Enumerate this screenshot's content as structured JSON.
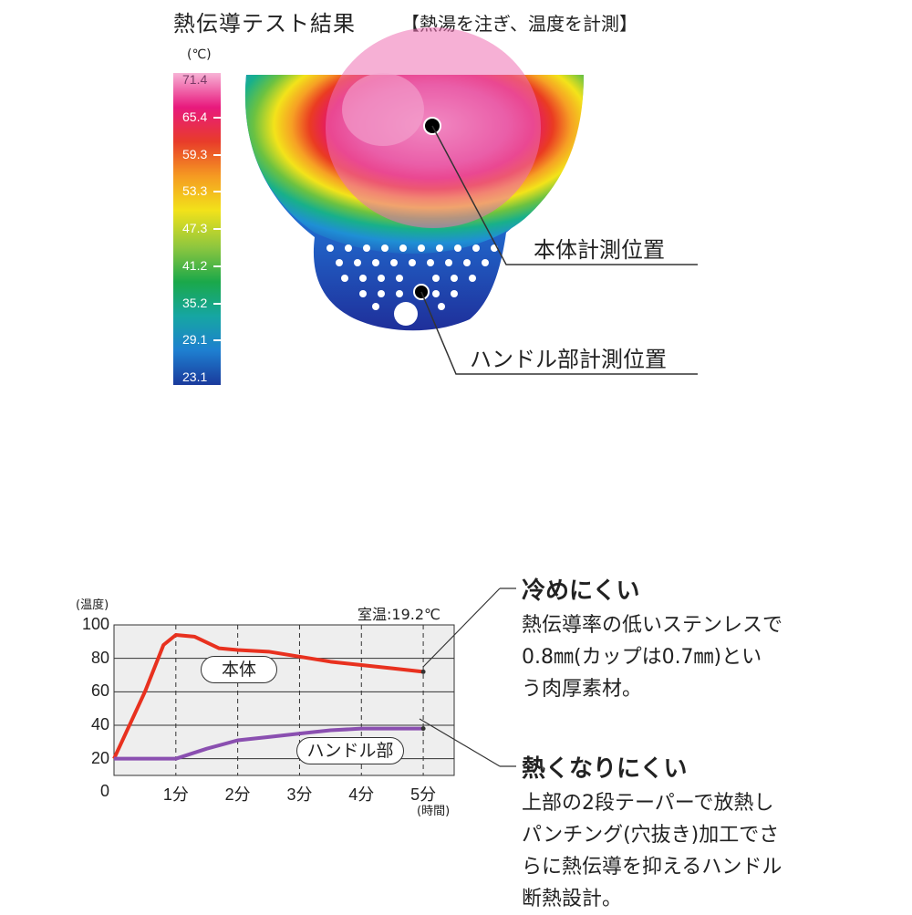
{
  "header": {
    "title": "熱伝導テスト結果",
    "subtitle": "【熱湯を注ぎ、温度を計測】"
  },
  "thermal_image": {
    "scale_unit": "(℃)",
    "scale_ticks": [
      "71.4",
      "65.4",
      "59.3",
      "53.3",
      "47.3",
      "41.2",
      "35.2",
      "29.1",
      "23.1"
    ],
    "scale_colors": [
      "#f7b3d6",
      "#e8197d",
      "#e83c2a",
      "#f59a22",
      "#f2e21a",
      "#8cc63f",
      "#1aa84a",
      "#16a6a3",
      "#1e7fd0",
      "#1a3a9c"
    ],
    "labels": {
      "body_point": "本体計測位置",
      "handle_point": "ハンドル部計測位置"
    }
  },
  "chart_data": {
    "type": "line",
    "ylabel": "(温度)",
    "xlabel": "(時間)",
    "ylim": [
      10,
      100
    ],
    "xlim": [
      0,
      5.5
    ],
    "y_ticks": [
      20,
      40,
      60,
      80,
      100
    ],
    "x_tick_labels": [
      "0",
      "1分",
      "2分",
      "3分",
      "4分",
      "5分"
    ],
    "annotation": "室温:19.2℃",
    "grid": true,
    "series": [
      {
        "name": "本体",
        "color": "#e8311f",
        "points": [
          [
            0,
            20
          ],
          [
            0.5,
            60
          ],
          [
            0.8,
            88
          ],
          [
            1,
            94
          ],
          [
            1.3,
            93
          ],
          [
            1.7,
            86
          ],
          [
            2,
            85
          ],
          [
            2.5,
            84
          ],
          [
            3,
            81
          ],
          [
            3.5,
            78
          ],
          [
            4,
            76
          ],
          [
            4.5,
            74
          ],
          [
            5,
            72
          ]
        ]
      },
      {
        "name": "ハンドル部",
        "color": "#8a4fb0",
        "points": [
          [
            0,
            20
          ],
          [
            0.5,
            20
          ],
          [
            1,
            20
          ],
          [
            1.5,
            26
          ],
          [
            2,
            31
          ],
          [
            2.5,
            33
          ],
          [
            3,
            35
          ],
          [
            3.5,
            37
          ],
          [
            4,
            38
          ],
          [
            4.5,
            38
          ],
          [
            5,
            38
          ]
        ]
      }
    ]
  },
  "notes": {
    "cold": {
      "title": "冷めにくい",
      "lines": [
        "熱伝導率の低いステンレスで",
        "0.8㎜(カップは0.7㎜)とい",
        "う肉厚素材。"
      ]
    },
    "hot": {
      "title": "熱くなりにくい",
      "lines": [
        "上部の2段テーパーで放熱し",
        "パンチング(穴抜き)加工でさ",
        "らに熱伝導を抑えるハンドル",
        "断熱設計。"
      ]
    }
  }
}
